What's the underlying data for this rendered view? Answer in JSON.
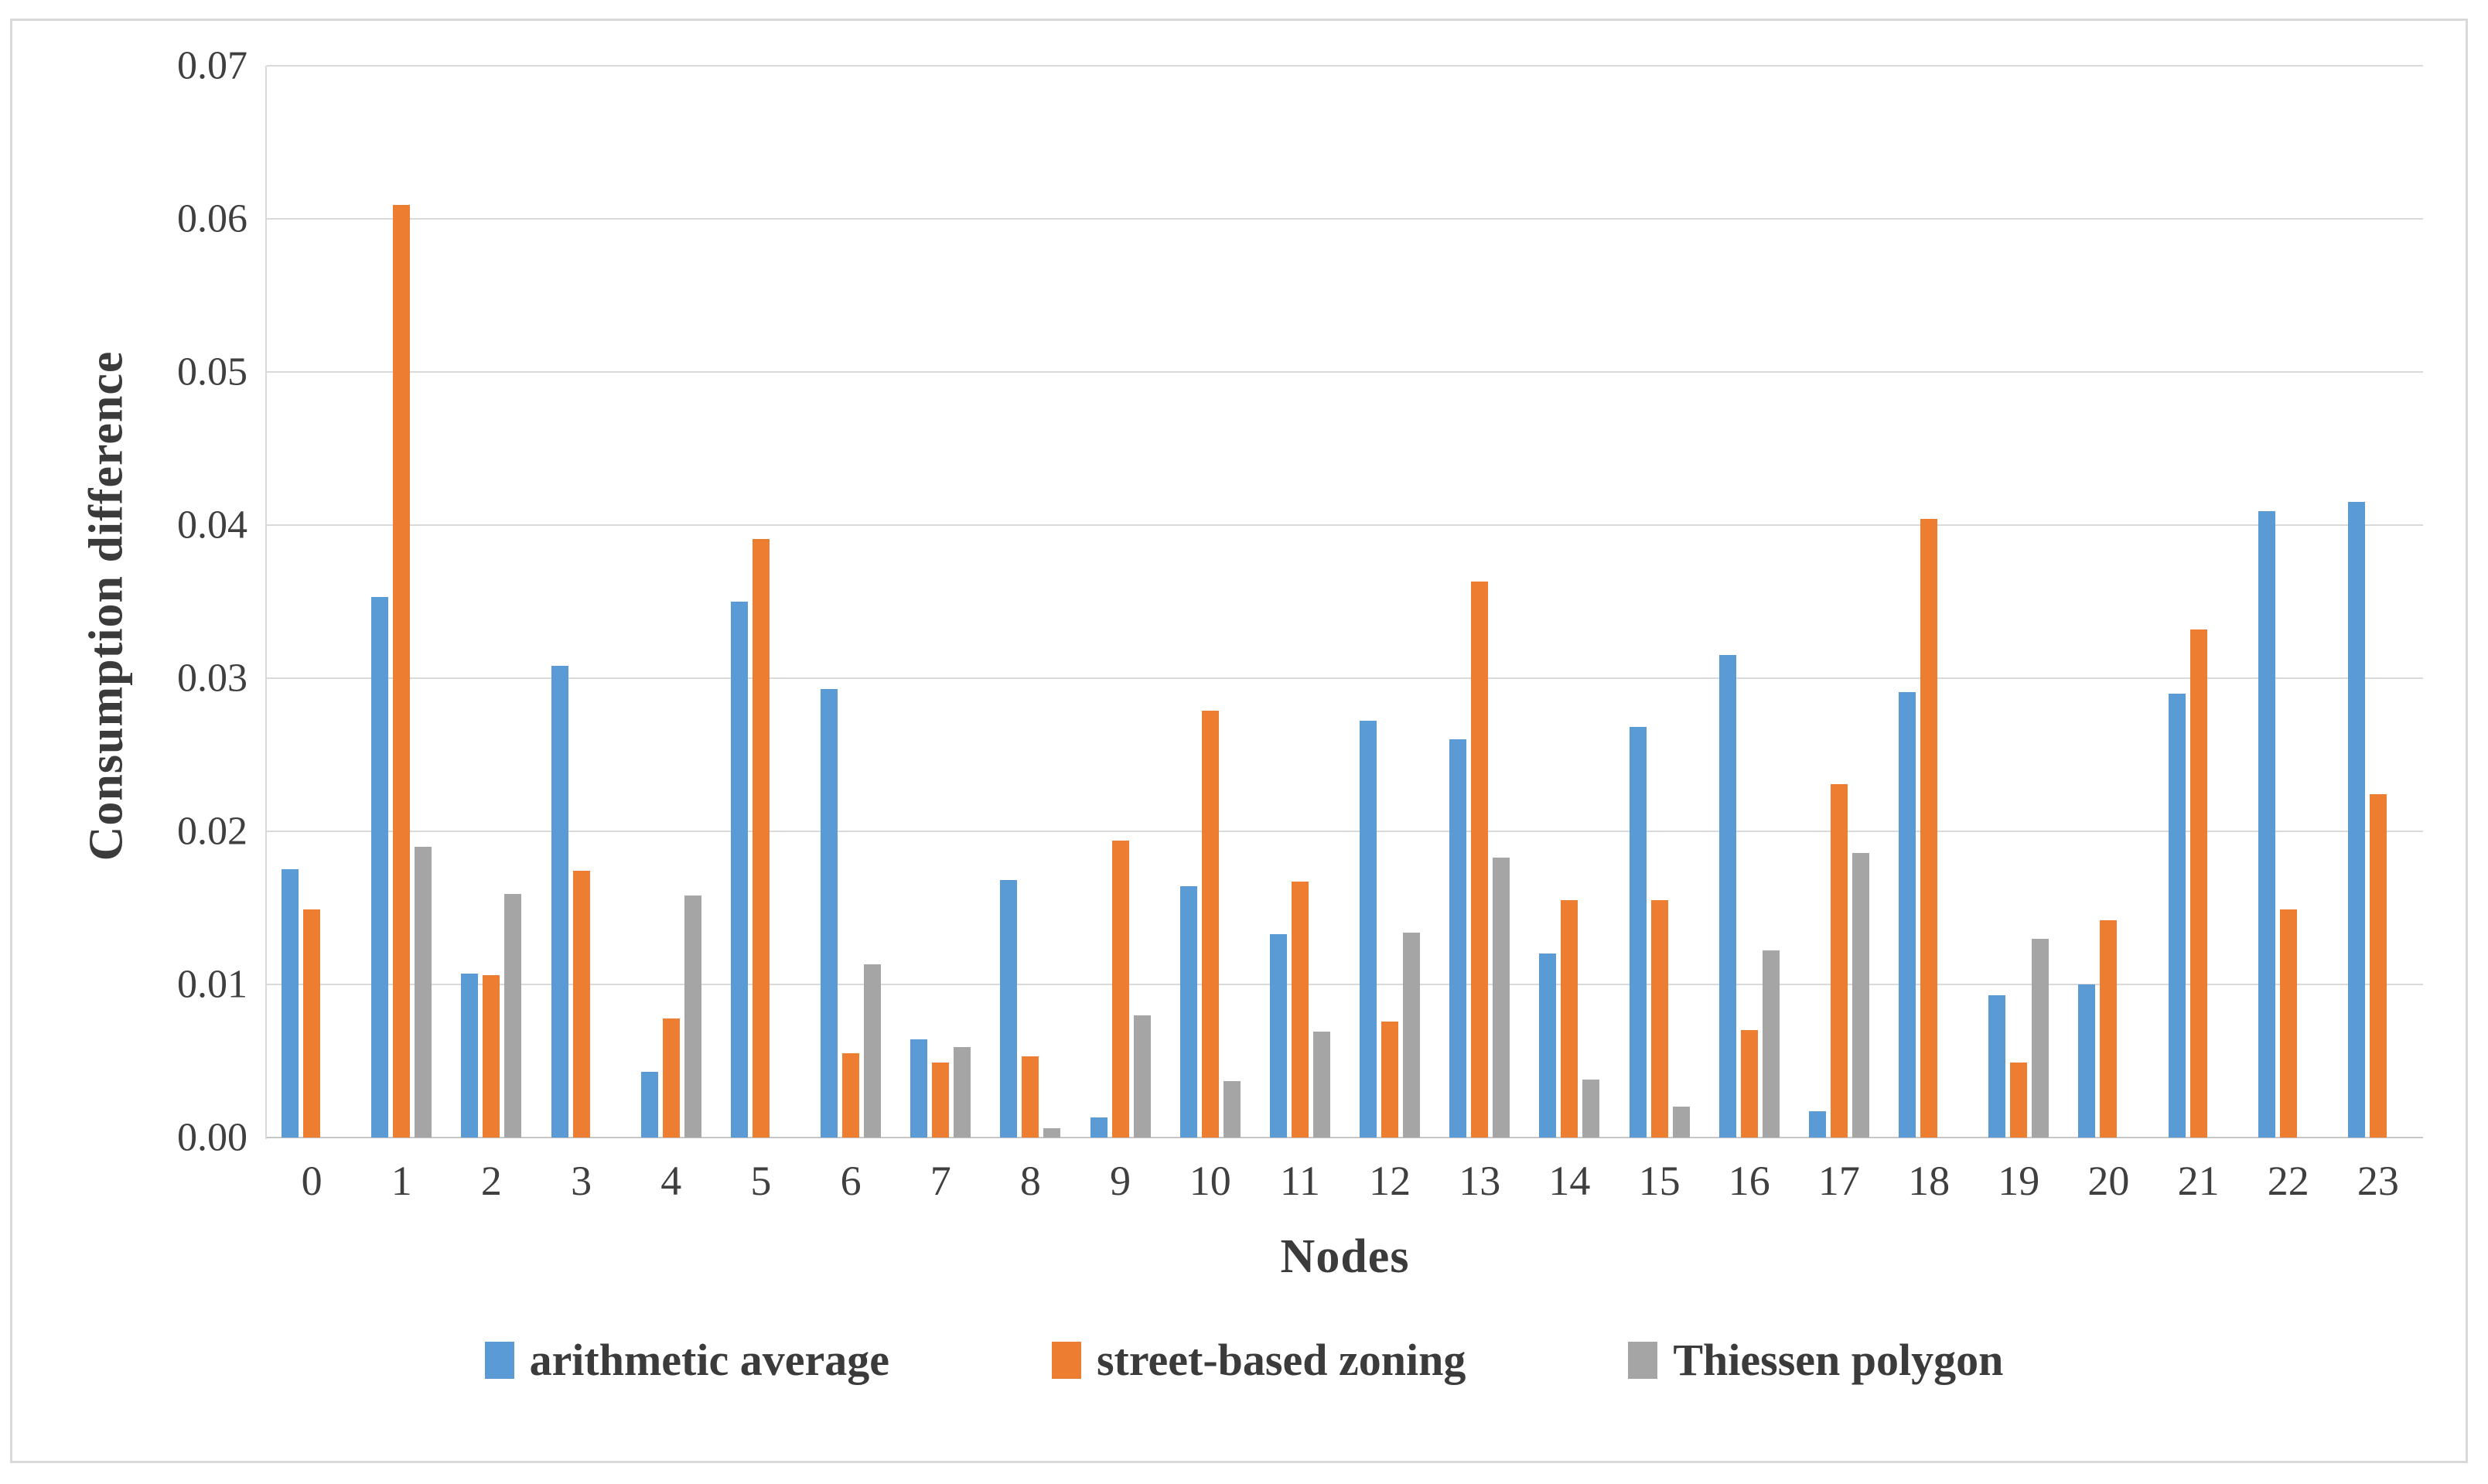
{
  "chart_data": {
    "type": "bar",
    "title": "",
    "xlabel": "Nodes",
    "ylabel": "Consumption difference",
    "categories": [
      "0",
      "1",
      "2",
      "3",
      "4",
      "5",
      "6",
      "7",
      "8",
      "9",
      "10",
      "11",
      "12",
      "13",
      "14",
      "15",
      "16",
      "17",
      "18",
      "19",
      "20",
      "21",
      "22",
      "23"
    ],
    "series": [
      {
        "name": "arithmetic average",
        "color": "#5B9BD5",
        "values": [
          0.0175,
          0.0353,
          0.0107,
          0.0308,
          0.0043,
          0.035,
          0.0293,
          0.0064,
          0.0168,
          0.0013,
          0.0164,
          0.0133,
          0.0272,
          0.026,
          0.012,
          0.0268,
          0.0315,
          0.0017,
          0.0291,
          0.0093,
          0.01,
          0.029,
          0.0409,
          0.0415
        ]
      },
      {
        "name": "street-based zoning",
        "color": "#ED7D31",
        "values": [
          0.0149,
          0.0609,
          0.0106,
          0.0174,
          0.0078,
          0.0391,
          0.0055,
          0.0049,
          0.0053,
          0.0194,
          0.0279,
          0.0167,
          0.0076,
          0.0363,
          0.0155,
          0.0155,
          0.007,
          0.0231,
          0.0404,
          0.0049,
          0.0142,
          0.0332,
          0.0149,
          0.0224
        ]
      },
      {
        "name": "Thiessen polygon",
        "color": "#A5A5A5",
        "values": [
          0,
          0.019,
          0.0159,
          0,
          0.0158,
          0,
          0.0113,
          0.0059,
          0.0006,
          0.008,
          0.0037,
          0.0069,
          0.0134,
          0.0183,
          0.0038,
          0.002,
          0.0122,
          0.0186,
          0,
          0.013,
          0,
          0,
          0,
          0
        ]
      }
    ],
    "ylim": [
      0.0,
      0.07
    ],
    "ytick_step": 0.01,
    "ytick_labels": [
      "0.00",
      "0.01",
      "0.02",
      "0.03",
      "0.04",
      "0.05",
      "0.06",
      "0.07"
    ],
    "grid": "horizontal",
    "legend_position": "bottom",
    "gridline_color": "#D9D9D9"
  }
}
